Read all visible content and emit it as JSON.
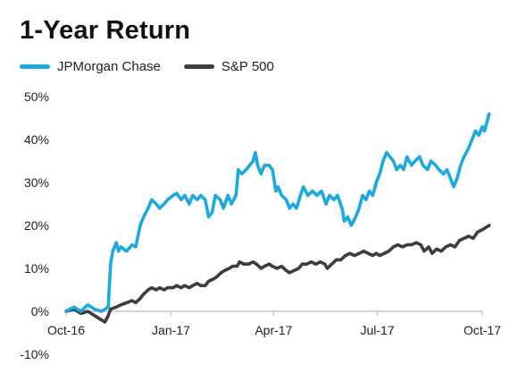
{
  "chart_data": {
    "type": "line",
    "title": "1-Year Return",
    "xlabel": "",
    "ylabel": "",
    "ylim": [
      -10,
      50
    ],
    "y_ticks": [
      "50%",
      "40%",
      "30%",
      "20%",
      "10%",
      "0%",
      "-10%"
    ],
    "y_tick_values": [
      50,
      40,
      30,
      20,
      10,
      0,
      -10
    ],
    "x_ticks": [
      "Oct-16",
      "Jan-17",
      "Apr-17",
      "Jul-17",
      "Oct-17"
    ],
    "x_tick_dates": [
      "2016-10-01",
      "2017-01-01",
      "2017-04-01",
      "2017-07-01",
      "2017-10-01"
    ],
    "grid": false,
    "legend": "top-left",
    "series": [
      {
        "name": "JPMorgan Chase",
        "color": "#1ba9e0",
        "points": [
          [
            "2016-10-01",
            0
          ],
          [
            "2016-10-08",
            1
          ],
          [
            "2016-10-14",
            0
          ],
          [
            "2016-10-20",
            1.5
          ],
          [
            "2016-10-26",
            0.5
          ],
          [
            "2016-11-01",
            0
          ],
          [
            "2016-11-04",
            0.5
          ],
          [
            "2016-11-07",
            1
          ],
          [
            "2016-11-09",
            11
          ],
          [
            "2016-11-11",
            14
          ],
          [
            "2016-11-14",
            16
          ],
          [
            "2016-11-16",
            14
          ],
          [
            "2016-11-18",
            15
          ],
          [
            "2016-11-23",
            14
          ],
          [
            "2016-11-28",
            15.5
          ],
          [
            "2016-12-01",
            15
          ],
          [
            "2016-12-05",
            20
          ],
          [
            "2016-12-08",
            22
          ],
          [
            "2016-12-12",
            24
          ],
          [
            "2016-12-15",
            26
          ],
          [
            "2016-12-19",
            25
          ],
          [
            "2016-12-22",
            24
          ],
          [
            "2016-12-26",
            25
          ],
          [
            "2016-12-29",
            26
          ],
          [
            "2017-01-03",
            27
          ],
          [
            "2017-01-06",
            27.5
          ],
          [
            "2017-01-10",
            26
          ],
          [
            "2017-01-13",
            27
          ],
          [
            "2017-01-17",
            25
          ],
          [
            "2017-01-20",
            27
          ],
          [
            "2017-01-24",
            26
          ],
          [
            "2017-01-27",
            27
          ],
          [
            "2017-01-31",
            26
          ],
          [
            "2017-02-03",
            22
          ],
          [
            "2017-02-06",
            23
          ],
          [
            "2017-02-09",
            27
          ],
          [
            "2017-02-13",
            26
          ],
          [
            "2017-02-16",
            24
          ],
          [
            "2017-02-20",
            27
          ],
          [
            "2017-02-23",
            25
          ],
          [
            "2017-02-27",
            27
          ],
          [
            "2017-03-01",
            33
          ],
          [
            "2017-03-04",
            32
          ],
          [
            "2017-03-08",
            33
          ],
          [
            "2017-03-11",
            34
          ],
          [
            "2017-03-14",
            35
          ],
          [
            "2017-03-16",
            37
          ],
          [
            "2017-03-18",
            34
          ],
          [
            "2017-03-21",
            32
          ],
          [
            "2017-03-24",
            34
          ],
          [
            "2017-03-28",
            34
          ],
          [
            "2017-03-31",
            33
          ],
          [
            "2017-04-03",
            28
          ],
          [
            "2017-04-05",
            29
          ],
          [
            "2017-04-08",
            27
          ],
          [
            "2017-04-12",
            26
          ],
          [
            "2017-04-15",
            24
          ],
          [
            "2017-04-18",
            25
          ],
          [
            "2017-04-21",
            24
          ],
          [
            "2017-04-24",
            26.5
          ],
          [
            "2017-04-27",
            29
          ],
          [
            "2017-05-01",
            27
          ],
          [
            "2017-05-05",
            28
          ],
          [
            "2017-05-09",
            27
          ],
          [
            "2017-05-13",
            28
          ],
          [
            "2017-05-17",
            25
          ],
          [
            "2017-05-20",
            27
          ],
          [
            "2017-05-24",
            26
          ],
          [
            "2017-05-27",
            27
          ],
          [
            "2017-05-31",
            24
          ],
          [
            "2017-06-02",
            21
          ],
          [
            "2017-06-05",
            22
          ],
          [
            "2017-06-08",
            20
          ],
          [
            "2017-06-12",
            22
          ],
          [
            "2017-06-15",
            24
          ],
          [
            "2017-06-18",
            27
          ],
          [
            "2017-06-21",
            26
          ],
          [
            "2017-06-24",
            28
          ],
          [
            "2017-06-27",
            27
          ],
          [
            "2017-06-30",
            30
          ],
          [
            "2017-07-03",
            32
          ],
          [
            "2017-07-06",
            35
          ],
          [
            "2017-07-09",
            37
          ],
          [
            "2017-07-12",
            36
          ],
          [
            "2017-07-15",
            35
          ],
          [
            "2017-07-18",
            33
          ],
          [
            "2017-07-21",
            34
          ],
          [
            "2017-07-24",
            33
          ],
          [
            "2017-07-27",
            36
          ],
          [
            "2017-07-31",
            34
          ],
          [
            "2017-08-03",
            35
          ],
          [
            "2017-08-07",
            36
          ],
          [
            "2017-08-10",
            34
          ],
          [
            "2017-08-14",
            33
          ],
          [
            "2017-08-17",
            35
          ],
          [
            "2017-08-21",
            34
          ],
          [
            "2017-08-24",
            33
          ],
          [
            "2017-08-28",
            32
          ],
          [
            "2017-08-31",
            33
          ],
          [
            "2017-09-03",
            31
          ],
          [
            "2017-09-06",
            29
          ],
          [
            "2017-09-09",
            31
          ],
          [
            "2017-09-12",
            34
          ],
          [
            "2017-09-15",
            36
          ],
          [
            "2017-09-19",
            38
          ],
          [
            "2017-09-22",
            40
          ],
          [
            "2017-09-25",
            42
          ],
          [
            "2017-09-28",
            41
          ],
          [
            "2017-10-01",
            43
          ],
          [
            "2017-10-03",
            42
          ],
          [
            "2017-10-05",
            44
          ],
          [
            "2017-10-07",
            46
          ]
        ]
      },
      {
        "name": "S&P 500",
        "color": "#3d3d3d",
        "points": [
          [
            "2016-10-01",
            0
          ],
          [
            "2016-10-08",
            0.5
          ],
          [
            "2016-10-14",
            -0.5
          ],
          [
            "2016-10-20",
            0
          ],
          [
            "2016-10-26",
            -1
          ],
          [
            "2016-11-01",
            -2
          ],
          [
            "2016-11-04",
            -2.5
          ],
          [
            "2016-11-07",
            -1
          ],
          [
            "2016-11-09",
            0.5
          ],
          [
            "2016-11-14",
            1
          ],
          [
            "2016-11-18",
            1.5
          ],
          [
            "2016-11-23",
            2
          ],
          [
            "2016-11-28",
            2.5
          ],
          [
            "2016-12-01",
            2
          ],
          [
            "2016-12-05",
            3
          ],
          [
            "2016-12-08",
            4
          ],
          [
            "2016-12-12",
            5
          ],
          [
            "2016-12-15",
            5.5
          ],
          [
            "2016-12-19",
            5
          ],
          [
            "2016-12-22",
            5.5
          ],
          [
            "2016-12-26",
            5
          ],
          [
            "2016-12-29",
            5.5
          ],
          [
            "2017-01-03",
            5.5
          ],
          [
            "2017-01-06",
            6
          ],
          [
            "2017-01-10",
            5.5
          ],
          [
            "2017-01-13",
            6
          ],
          [
            "2017-01-17",
            5.5
          ],
          [
            "2017-01-20",
            6
          ],
          [
            "2017-01-24",
            6.5
          ],
          [
            "2017-01-27",
            6
          ],
          [
            "2017-01-31",
            6
          ],
          [
            "2017-02-03",
            7
          ],
          [
            "2017-02-07",
            7.5
          ],
          [
            "2017-02-10",
            8
          ],
          [
            "2017-02-14",
            9
          ],
          [
            "2017-02-17",
            9.5
          ],
          [
            "2017-02-21",
            10
          ],
          [
            "2017-02-24",
            10.5
          ],
          [
            "2017-02-28",
            10.5
          ],
          [
            "2017-03-02",
            11.5
          ],
          [
            "2017-03-06",
            11
          ],
          [
            "2017-03-10",
            11
          ],
          [
            "2017-03-14",
            11.5
          ],
          [
            "2017-03-17",
            11
          ],
          [
            "2017-03-21",
            10
          ],
          [
            "2017-03-24",
            10.5
          ],
          [
            "2017-03-28",
            11
          ],
          [
            "2017-03-31",
            10.5
          ],
          [
            "2017-04-04",
            10
          ],
          [
            "2017-04-08",
            10.5
          ],
          [
            "2017-04-12",
            9.5
          ],
          [
            "2017-04-15",
            9
          ],
          [
            "2017-04-19",
            9.5
          ],
          [
            "2017-04-23",
            10
          ],
          [
            "2017-04-26",
            11
          ],
          [
            "2017-04-30",
            11
          ],
          [
            "2017-05-04",
            11.5
          ],
          [
            "2017-05-08",
            11
          ],
          [
            "2017-05-12",
            11.5
          ],
          [
            "2017-05-16",
            11
          ],
          [
            "2017-05-18",
            10
          ],
          [
            "2017-05-22",
            11
          ],
          [
            "2017-05-26",
            12
          ],
          [
            "2017-05-30",
            12
          ],
          [
            "2017-06-03",
            13
          ],
          [
            "2017-06-07",
            13.5
          ],
          [
            "2017-06-11",
            13
          ],
          [
            "2017-06-15",
            13.5
          ],
          [
            "2017-06-19",
            14
          ],
          [
            "2017-06-23",
            13.5
          ],
          [
            "2017-06-27",
            13
          ],
          [
            "2017-06-30",
            13.5
          ],
          [
            "2017-07-03",
            13
          ],
          [
            "2017-07-07",
            13.5
          ],
          [
            "2017-07-11",
            14
          ],
          [
            "2017-07-15",
            15
          ],
          [
            "2017-07-19",
            15.5
          ],
          [
            "2017-07-23",
            15
          ],
          [
            "2017-07-27",
            15.5
          ],
          [
            "2017-07-31",
            15.5
          ],
          [
            "2017-08-04",
            16
          ],
          [
            "2017-08-08",
            15.5
          ],
          [
            "2017-08-11",
            14
          ],
          [
            "2017-08-15",
            15
          ],
          [
            "2017-08-18",
            13.5
          ],
          [
            "2017-08-22",
            14.5
          ],
          [
            "2017-08-26",
            14
          ],
          [
            "2017-08-30",
            15
          ],
          [
            "2017-09-03",
            15.5
          ],
          [
            "2017-09-07",
            15
          ],
          [
            "2017-09-11",
            16.5
          ],
          [
            "2017-09-15",
            17
          ],
          [
            "2017-09-19",
            17.5
          ],
          [
            "2017-09-23",
            17
          ],
          [
            "2017-09-27",
            18.5
          ],
          [
            "2017-10-01",
            19
          ],
          [
            "2017-10-04",
            19.5
          ],
          [
            "2017-10-07",
            20
          ]
        ]
      }
    ]
  }
}
